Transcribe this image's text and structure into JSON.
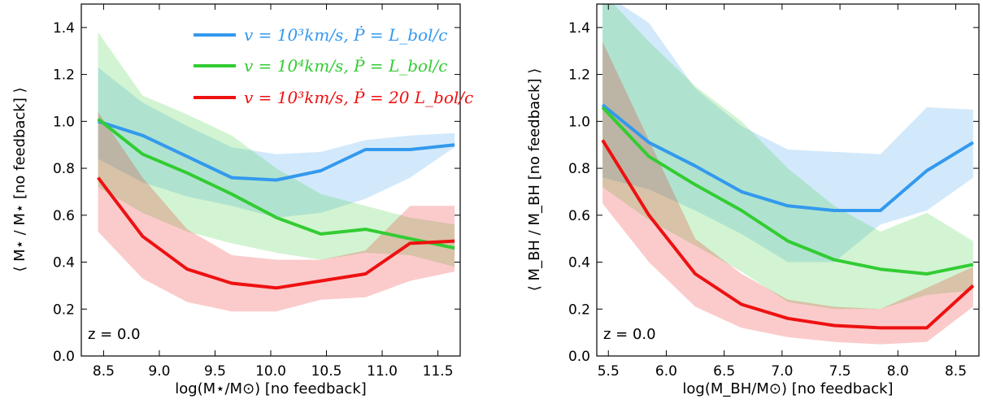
{
  "colors": {
    "blue": "#3399ee",
    "green": "#33cc33",
    "red": "#ee1111"
  },
  "chart_data": [
    {
      "type": "line",
      "xlabel": "log(M⋆/M⊙) [no feedback]",
      "ylabel": "⟨ M⋆ / M⋆ [no feedback] ⟩",
      "annotation": "z = 0.0",
      "xlim": [
        8.3,
        11.7
      ],
      "ylim": [
        0.0,
        1.5
      ],
      "xticks": [
        8.5,
        9.0,
        9.5,
        10.0,
        10.5,
        11.0,
        11.5
      ],
      "yticks": [
        0.0,
        0.2,
        0.4,
        0.6,
        0.8,
        1.0,
        1.2,
        1.4
      ],
      "x": [
        8.45,
        8.85,
        9.25,
        9.65,
        10.05,
        10.45,
        10.85,
        11.25,
        11.65
      ],
      "legend_position": "top-right",
      "series": [
        {
          "name": "v = 10³km/s, Ṗ = L_bol/c",
          "color": "blue",
          "values": [
            1.0,
            0.94,
            0.85,
            0.76,
            0.75,
            0.79,
            0.88,
            0.88,
            0.9
          ],
          "upper": [
            1.23,
            1.08,
            0.98,
            0.89,
            0.86,
            0.87,
            0.92,
            0.94,
            0.95
          ],
          "lower": [
            0.84,
            0.74,
            0.68,
            0.64,
            0.59,
            0.61,
            0.67,
            0.76,
            0.89
          ]
        },
        {
          "name": "v = 10⁴km/s, Ṗ = L_bol/c",
          "color": "green",
          "values": [
            1.01,
            0.86,
            0.78,
            0.69,
            0.59,
            0.52,
            0.54,
            0.5,
            0.46
          ],
          "upper": [
            1.38,
            1.11,
            1.03,
            0.94,
            0.8,
            0.69,
            0.64,
            0.59,
            0.56
          ],
          "lower": [
            0.72,
            0.61,
            0.53,
            0.48,
            0.44,
            0.41,
            0.44,
            0.43,
            0.38
          ]
        },
        {
          "name": "v = 10³km/s, Ṗ = 20 L_bol/c",
          "color": "red",
          "values": [
            0.76,
            0.51,
            0.37,
            0.31,
            0.29,
            0.32,
            0.35,
            0.48,
            0.49
          ],
          "upper": [
            1.04,
            0.76,
            0.54,
            0.43,
            0.41,
            0.41,
            0.45,
            0.64,
            0.64
          ],
          "lower": [
            0.53,
            0.33,
            0.23,
            0.19,
            0.19,
            0.24,
            0.25,
            0.32,
            0.36
          ]
        }
      ]
    },
    {
      "type": "line",
      "xlabel": "log(M_BH/M⊙) [no feedback]",
      "ylabel": "⟨ M_BH / M_BH [no feedback] ⟩",
      "annotation": "z = 0.0",
      "xlim": [
        5.4,
        8.7
      ],
      "ylim": [
        0.0,
        1.5
      ],
      "xticks": [
        5.5,
        6.0,
        6.5,
        7.0,
        7.5,
        8.0,
        8.5
      ],
      "yticks": [
        0.0,
        0.2,
        0.4,
        0.6,
        0.8,
        1.0,
        1.2,
        1.4
      ],
      "x": [
        5.45,
        5.85,
        6.25,
        6.65,
        7.05,
        7.45,
        7.85,
        8.25,
        8.65
      ],
      "series": [
        {
          "color": "blue",
          "values": [
            1.07,
            0.91,
            0.81,
            0.7,
            0.64,
            0.62,
            0.62,
            0.79,
            0.91
          ],
          "upper": [
            1.55,
            1.42,
            1.14,
            0.98,
            0.88,
            0.87,
            0.86,
            1.06,
            1.05
          ],
          "lower": [
            0.76,
            0.71,
            0.62,
            0.52,
            0.4,
            0.4,
            0.56,
            0.62,
            0.76
          ]
        },
        {
          "color": "green",
          "values": [
            1.06,
            0.85,
            0.73,
            0.62,
            0.49,
            0.41,
            0.37,
            0.35,
            0.39
          ],
          "upper": [
            1.55,
            1.34,
            1.15,
            1.0,
            0.8,
            0.64,
            0.53,
            0.61,
            0.49
          ],
          "lower": [
            0.72,
            0.58,
            0.47,
            0.36,
            0.23,
            0.2,
            0.2,
            0.26,
            0.28
          ]
        },
        {
          "color": "red",
          "values": [
            0.92,
            0.6,
            0.35,
            0.22,
            0.16,
            0.13,
            0.12,
            0.12,
            0.3
          ],
          "upper": [
            1.34,
            0.92,
            0.5,
            0.35,
            0.24,
            0.21,
            0.2,
            0.29,
            0.38
          ],
          "lower": [
            0.65,
            0.4,
            0.21,
            0.12,
            0.08,
            0.06,
            0.05,
            0.06,
            0.21
          ]
        }
      ]
    }
  ]
}
